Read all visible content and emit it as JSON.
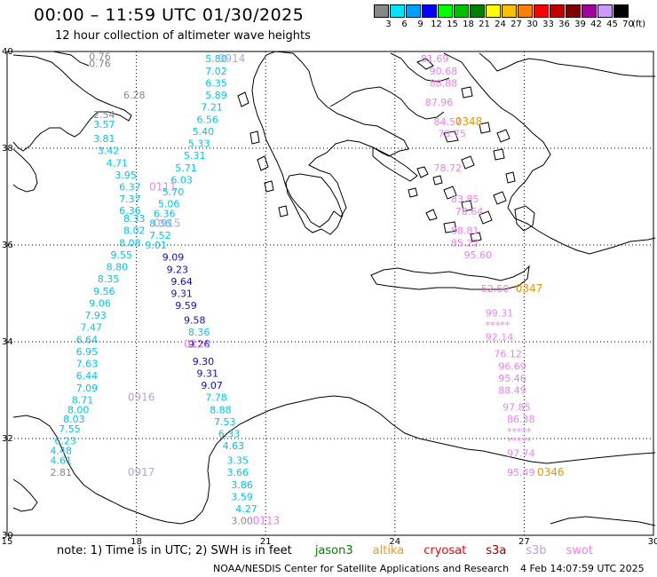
{
  "title": "00:00 – 11:59 UTC 01/30/2025",
  "subtitle": "12 hour collection of altimeter wave heights",
  "legend": {
    "unit": "(ft)",
    "bins": [
      {
        "label": "3",
        "color": "#888888"
      },
      {
        "label": "6",
        "color": "#00e5ff"
      },
      {
        "label": "9",
        "color": "#00a0ff"
      },
      {
        "label": "12",
        "color": "#0000ff"
      },
      {
        "label": "15",
        "color": "#00ff00"
      },
      {
        "label": "18",
        "color": "#00c000"
      },
      {
        "label": "21",
        "color": "#008000"
      },
      {
        "label": "24",
        "color": "#ffff00"
      },
      {
        "label": "27",
        "color": "#ffc000"
      },
      {
        "label": "30",
        "color": "#ff8000"
      },
      {
        "label": "33",
        "color": "#ff0000"
      },
      {
        "label": "36",
        "color": "#c00000"
      },
      {
        "label": "39",
        "color": "#800000"
      },
      {
        "label": "42",
        "color": "#a000a0"
      },
      {
        "label": "45",
        "color": "#cc99ff"
      },
      {
        "label": "70",
        "color": "#000000"
      }
    ]
  },
  "map": {
    "lon_range": [
      15,
      30
    ],
    "lat_range": [
      30,
      40
    ],
    "x_ticks": [
      "15",
      "18",
      "21",
      "24",
      "27",
      "30"
    ],
    "y_ticks": [
      "40",
      "38",
      "36",
      "34",
      "32",
      "30"
    ]
  },
  "tracks": [
    {
      "color": "#888888",
      "points": [
        {
          "lon": 16.9,
          "lat": 39.9,
          "v": "0.76"
        },
        {
          "lon": 16.9,
          "lat": 39.75,
          "v": "0.76"
        },
        {
          "lon": 17.7,
          "lat": 39.1,
          "v": "6.28"
        },
        {
          "lon": 17.0,
          "lat": 38.7,
          "v": "2.54"
        }
      ]
    },
    {
      "color": "#00c8e6",
      "points": [
        {
          "lon": 17.0,
          "lat": 38.5,
          "v": "3.57"
        },
        {
          "lon": 17.0,
          "lat": 38.2,
          "v": "3.81"
        },
        {
          "lon": 17.1,
          "lat": 37.95,
          "v": "3.42"
        },
        {
          "lon": 17.3,
          "lat": 37.7,
          "v": "4.71"
        },
        {
          "lon": 17.5,
          "lat": 37.45,
          "v": "3.95"
        },
        {
          "lon": 17.6,
          "lat": 37.2,
          "v": "6.37"
        },
        {
          "lon": 17.6,
          "lat": 36.95,
          "v": "7.37"
        },
        {
          "lon": 17.6,
          "lat": 36.72,
          "v": "6.36"
        },
        {
          "lon": 17.7,
          "lat": 36.55,
          "v": "8.33"
        },
        {
          "lon": 17.7,
          "lat": 36.3,
          "v": "8.02"
        },
        {
          "lon": 17.6,
          "lat": 36.05,
          "v": "8.08"
        },
        {
          "lon": 17.4,
          "lat": 35.8,
          "v": "9.55"
        },
        {
          "lon": 17.3,
          "lat": 35.55,
          "v": "8.80"
        },
        {
          "lon": 17.1,
          "lat": 35.3,
          "v": "8.35"
        },
        {
          "lon": 17.0,
          "lat": 35.05,
          "v": "9.56"
        },
        {
          "lon": 16.9,
          "lat": 34.8,
          "v": "9.06"
        },
        {
          "lon": 16.8,
          "lat": 34.55,
          "v": "7.93"
        },
        {
          "lon": 16.7,
          "lat": 34.3,
          "v": "7.47"
        },
        {
          "lon": 16.6,
          "lat": 34.05,
          "v": "6.64"
        },
        {
          "lon": 16.6,
          "lat": 33.8,
          "v": "6.95"
        },
        {
          "lon": 16.6,
          "lat": 33.55,
          "v": "7.63"
        },
        {
          "lon": 16.6,
          "lat": 33.3,
          "v": "6.44"
        },
        {
          "lon": 16.6,
          "lat": 33.05,
          "v": "7.09"
        },
        {
          "lon": 16.5,
          "lat": 32.8,
          "v": "8.71"
        },
        {
          "lon": 16.4,
          "lat": 32.6,
          "v": "8.00"
        },
        {
          "lon": 16.3,
          "lat": 32.4,
          "v": "8.03"
        },
        {
          "lon": 16.2,
          "lat": 32.2,
          "v": "7.55"
        },
        {
          "lon": 16.1,
          "lat": 31.95,
          "v": "6.23"
        },
        {
          "lon": 16.0,
          "lat": 31.75,
          "v": "4.48"
        },
        {
          "lon": 16.0,
          "lat": 31.55,
          "v": "4.61"
        }
      ]
    },
    {
      "color": "#888888",
      "points": [
        {
          "lon": 16.0,
          "lat": 31.3,
          "v": "2.81"
        }
      ]
    },
    {
      "color": "#00c8e6",
      "points": [
        {
          "lon": 19.6,
          "lat": 39.85,
          "v": "5.80"
        },
        {
          "lon": 19.6,
          "lat": 39.6,
          "v": "7.02"
        },
        {
          "lon": 19.6,
          "lat": 39.35,
          "v": "6.35"
        },
        {
          "lon": 19.6,
          "lat": 39.1,
          "v": "5.89"
        },
        {
          "lon": 19.5,
          "lat": 38.85,
          "v": "7.21"
        },
        {
          "lon": 19.4,
          "lat": 38.6,
          "v": "6.56"
        },
        {
          "lon": 19.3,
          "lat": 38.35,
          "v": "5.40"
        },
        {
          "lon": 19.2,
          "lat": 38.1,
          "v": "5.33"
        },
        {
          "lon": 19.1,
          "lat": 37.85,
          "v": "5.31"
        },
        {
          "lon": 18.9,
          "lat": 37.6,
          "v": "5.71"
        },
        {
          "lon": 18.8,
          "lat": 37.35,
          "v": "6.03"
        },
        {
          "lon": 18.6,
          "lat": 37.1,
          "v": "5.70"
        },
        {
          "lon": 18.5,
          "lat": 36.85,
          "v": "5.06"
        },
        {
          "lon": 18.4,
          "lat": 36.65,
          "v": "6.36"
        },
        {
          "lon": 18.3,
          "lat": 36.45,
          "v": "8.36"
        },
        {
          "lon": 18.3,
          "lat": 36.2,
          "v": "7.52"
        },
        {
          "lon": 18.2,
          "lat": 36.0,
          "v": "9.01"
        }
      ]
    },
    {
      "color": "#1010c0",
      "points": [
        {
          "lon": 18.6,
          "lat": 35.75,
          "v": "9.09"
        },
        {
          "lon": 18.7,
          "lat": 35.5,
          "v": "9.23"
        },
        {
          "lon": 18.8,
          "lat": 35.25,
          "v": "9.64"
        },
        {
          "lon": 18.8,
          "lat": 35.0,
          "v": "9.31"
        },
        {
          "lon": 18.9,
          "lat": 34.75,
          "v": "9.59"
        },
        {
          "lon": 19.1,
          "lat": 34.45,
          "v": "9.58"
        }
      ]
    },
    {
      "color": "#00c8e6",
      "points": [
        {
          "lon": 19.2,
          "lat": 34.2,
          "v": "8.36"
        }
      ]
    },
    {
      "color": "#1010c0",
      "points": [
        {
          "lon": 19.2,
          "lat": 33.95,
          "v": "9.26"
        },
        {
          "lon": 19.3,
          "lat": 33.6,
          "v": "9.30"
        },
        {
          "lon": 19.4,
          "lat": 33.35,
          "v": "9.31"
        },
        {
          "lon": 19.5,
          "lat": 33.1,
          "v": "9.07"
        }
      ]
    },
    {
      "color": "#00c8e6",
      "points": [
        {
          "lon": 19.6,
          "lat": 32.85,
          "v": "7.78"
        },
        {
          "lon": 19.7,
          "lat": 32.6,
          "v": "8.88"
        },
        {
          "lon": 19.8,
          "lat": 32.35,
          "v": "7.53"
        },
        {
          "lon": 19.9,
          "lat": 32.1,
          "v": "6.33"
        },
        {
          "lon": 20.0,
          "lat": 31.85,
          "v": "4.63"
        },
        {
          "lon": 20.1,
          "lat": 31.55,
          "v": "3.35"
        },
        {
          "lon": 20.1,
          "lat": 31.3,
          "v": "3.66"
        },
        {
          "lon": 20.2,
          "lat": 31.05,
          "v": "3.86"
        },
        {
          "lon": 20.2,
          "lat": 30.8,
          "v": "3.59"
        },
        {
          "lon": 20.3,
          "lat": 30.55,
          "v": "4.27"
        }
      ]
    },
    {
      "color": "#888888",
      "points": [
        {
          "lon": 20.2,
          "lat": 30.3,
          "v": "3.00"
        }
      ]
    },
    {
      "color": "#ee82ee",
      "points": [
        {
          "lon": 24.6,
          "lat": 39.85,
          "v": "81.69"
        },
        {
          "lon": 24.8,
          "lat": 39.6,
          "v": "90.68"
        },
        {
          "lon": 24.8,
          "lat": 39.35,
          "v": "88.88"
        },
        {
          "lon": 24.7,
          "lat": 38.95,
          "v": "87.96"
        },
        {
          "lon": 24.9,
          "lat": 38.55,
          "v": "84.57"
        },
        {
          "lon": 25.0,
          "lat": 38.3,
          "v": "78.75"
        },
        {
          "lon": 24.9,
          "lat": 37.6,
          "v": "78.72"
        },
        {
          "lon": 25.3,
          "lat": 36.95,
          "v": "83.85"
        },
        {
          "lon": 25.4,
          "lat": 36.7,
          "v": "78.64"
        },
        {
          "lon": 25.3,
          "lat": 36.3,
          "v": "88.81"
        },
        {
          "lon": 25.3,
          "lat": 36.05,
          "v": "85.22"
        },
        {
          "lon": 25.6,
          "lat": 35.8,
          "v": "95.60"
        },
        {
          "lon": 26.0,
          "lat": 35.1,
          "v": "52.50"
        },
        {
          "lon": 26.1,
          "lat": 34.6,
          "v": "99.31"
        },
        {
          "lon": 26.1,
          "lat": 34.35,
          "v": "*****"
        },
        {
          "lon": 26.1,
          "lat": 34.1,
          "v": "92.14"
        },
        {
          "lon": 26.3,
          "lat": 33.75,
          "v": "76.12"
        },
        {
          "lon": 26.4,
          "lat": 33.5,
          "v": "96.69"
        },
        {
          "lon": 26.4,
          "lat": 33.25,
          "v": "95.46"
        },
        {
          "lon": 26.4,
          "lat": 33.0,
          "v": "88.49"
        },
        {
          "lon": 26.5,
          "lat": 32.65,
          "v": "97.85"
        },
        {
          "lon": 26.6,
          "lat": 32.4,
          "v": "86.38"
        },
        {
          "lon": 26.6,
          "lat": 32.15,
          "v": "*****"
        },
        {
          "lon": 26.6,
          "lat": 31.95,
          "v": "*****"
        },
        {
          "lon": 26.6,
          "lat": 31.7,
          "v": "97.74"
        },
        {
          "lon": 26.6,
          "lat": 31.3,
          "v": "95.49"
        }
      ]
    }
  ],
  "time_labels": [
    {
      "lon": 19.9,
      "lat": 39.85,
      "text": "0914",
      "color": "#b8a0f0"
    },
    {
      "lon": 18.3,
      "lat": 37.2,
      "text": "0111",
      "color": "#ee82ee"
    },
    {
      "lon": 18.4,
      "lat": 36.45,
      "text": "0915",
      "color": "#b8a0f0"
    },
    {
      "lon": 19.1,
      "lat": 33.95,
      "text": "0112",
      "color": "#ee82ee"
    },
    {
      "lon": 17.8,
      "lat": 32.85,
      "text": "0916",
      "color": "#b8a0f0"
    },
    {
      "lon": 17.8,
      "lat": 31.3,
      "text": "0917",
      "color": "#b8a0f0"
    },
    {
      "lon": 20.7,
      "lat": 30.3,
      "text": "0113",
      "color": "#ee82ee"
    },
    {
      "lon": 25.4,
      "lat": 38.55,
      "text": "0348",
      "color": "#e69900"
    },
    {
      "lon": 26.8,
      "lat": 35.1,
      "text": "0347",
      "color": "#e69900"
    },
    {
      "lon": 27.3,
      "lat": 31.3,
      "text": "0346",
      "color": "#e69900"
    }
  ],
  "note": {
    "prefix": "note: 1) Time is in UTC; 2) SWH is in feet",
    "satellites": [
      {
        "name": "jason3",
        "color": "#008000"
      },
      {
        "name": "altika",
        "color": "#ff9900"
      },
      {
        "name": "cryosat",
        "color": "#ff0000"
      },
      {
        "name": "s3a",
        "color": "#a00000"
      },
      {
        "name": "s3b",
        "color": "#b8a0f0"
      },
      {
        "name": "swot",
        "color": "#ee82ee"
      }
    ]
  },
  "credit": "NOAA/NESDIS Center for Satellite Applications and Research",
  "stamp": "4 Feb 14:07:59 UTC 2025"
}
